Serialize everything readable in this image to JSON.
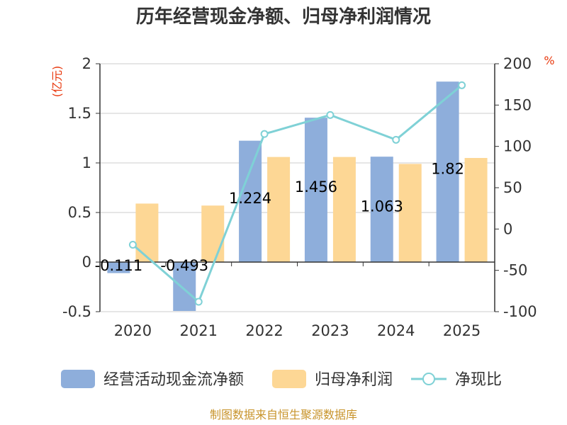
{
  "chart_data": {
    "type": "bar",
    "title": "历年经营现金净额、归母净利润情况",
    "categories": [
      "2020",
      "2021",
      "2022",
      "2023",
      "2024",
      "2025"
    ],
    "series": [
      {
        "name": "经营活动现金流净额",
        "axis": "left",
        "color": "#8eaedb",
        "values": [
          -0.111,
          -0.493,
          1.224,
          1.456,
          1.063,
          1.82
        ],
        "labels": [
          "-0.111",
          "-0.493",
          "1.224",
          "1.456",
          "1.063",
          "1.82"
        ]
      },
      {
        "name": "归母净利润",
        "axis": "left",
        "color": "#fdd795",
        "values": [
          0.59,
          0.57,
          1.06,
          1.06,
          0.99,
          1.05
        ]
      },
      {
        "name": "净现比",
        "axis": "right",
        "type": "line",
        "color": "#7fd1d6",
        "values": [
          -19,
          -88,
          115,
          138,
          108,
          174
        ]
      }
    ],
    "left_axis": {
      "unit": "(亿元)",
      "ylim": [
        -0.5,
        2
      ],
      "ticks": [
        -0.5,
        0,
        0.5,
        1,
        1.5,
        2
      ],
      "tick_labels": [
        "-0.5",
        "0",
        "0.5",
        "1",
        "1.5",
        "2"
      ]
    },
    "right_axis": {
      "unit": "%",
      "ylim": [
        -100,
        200
      ],
      "ticks": [
        -100,
        -50,
        0,
        50,
        100,
        150,
        200
      ],
      "tick_labels": [
        "-100",
        "-50",
        "0",
        "50",
        "100",
        "150",
        "200"
      ]
    },
    "legend_position": "bottom",
    "grid": true
  },
  "source": "制图数据来自恒生聚源数据库"
}
